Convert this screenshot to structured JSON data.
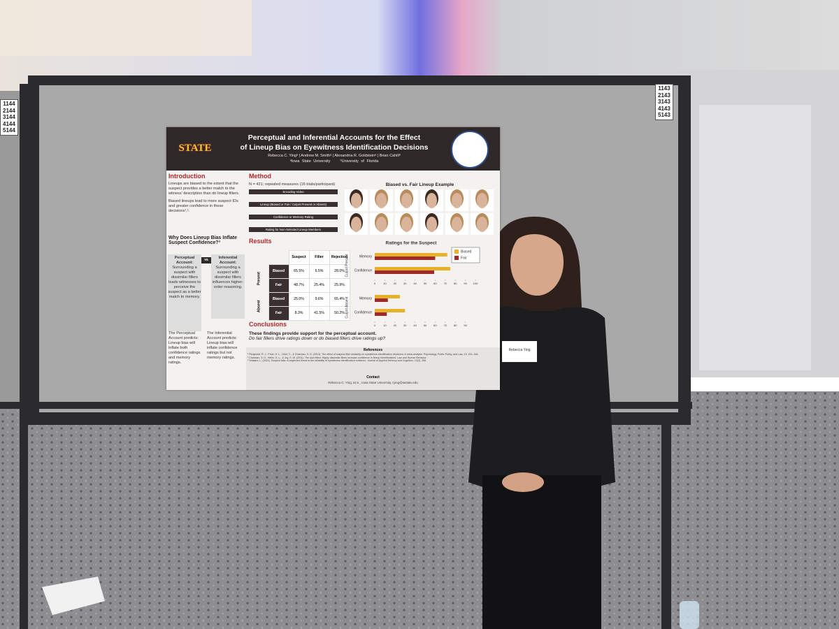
{
  "board_numbers": {
    "left": [
      "1144",
      "2144",
      "3144",
      "4144",
      "5144"
    ],
    "right": [
      "1143",
      "2143",
      "3143",
      "4143",
      "5143"
    ]
  },
  "poster": {
    "logo": "STATE",
    "title": [
      "Perceptual and Inferential Accounts for the Effect",
      "of Lineup Bias on Eyewitness Identification Decisions"
    ],
    "authors": "Rebecca C. Yingᵃ | Andrew M. Smithᵃ | Alexandria R. Goldsteinᵃ | Brian Cahillᵇ",
    "affiliations": [
      "ᵃIowa State University",
      "ᵇUniversity of Florida"
    ],
    "introduction": {
      "heading": "Introduction",
      "paragraphs": [
        "Lineups are biased to the extent that the suspect provides a better match to the witness' description than do lineup fillers.",
        "Biased lineups lead to more suspect IDs and greater confidence in these decisions¹,²."
      ]
    },
    "question": "Why Does Lineup Bias Inflate Suspect Confidence?³",
    "accounts": {
      "vs": "vs",
      "perceptual": {
        "name": "Perceptual Account:",
        "text": "Surrounding a suspect with dissimilar fillers leads witnesses to perceive the suspect as a better match to memory.",
        "prediction": "The Perceptual Account predicts: Lineup bias will inflate both confidence ratings and memory ratings."
      },
      "inferential": {
        "name": "Inferential Account:",
        "text": "Surrounding a suspect with dissimilar fillers influences higher-order reasoning.",
        "prediction": "The Inferential Account predicts: Lineup bias will inflate confidence ratings but not memory ratings."
      }
    },
    "method": {
      "heading": "Method",
      "design": "N = 421; repeated measures (16 trials/participant)",
      "steps": [
        "Encoding Video",
        "Lineup (Biased or Fair / Culprit Present or Absent)",
        "Confidence or Memory Rating",
        "Rating for Non-Selected Lineup Members"
      ]
    },
    "lineup_example": "Biased vs. Fair Lineup Example",
    "results": {
      "heading": "Results",
      "table": {
        "columns": [
          "Suspect",
          "Filler",
          "Rejection"
        ],
        "groups": [
          "Present",
          "Absent"
        ],
        "rows": [
          {
            "label": "Biased",
            "cells": [
              "65.5%",
              "6.5%",
              "28.0%"
            ]
          },
          {
            "label": "Fair",
            "cells": [
              "48.7%",
              "25.4%",
              "25.9%"
            ]
          },
          {
            "label": "Biased",
            "cells": [
              "25.0%",
              "9.6%",
              "65.4%"
            ]
          },
          {
            "label": "Fair",
            "cells": [
              "8.3%",
              "41.5%",
              "50.2%"
            ]
          }
        ]
      }
    },
    "chart": {
      "type": "bar",
      "title": "Ratings for the Suspect",
      "groups": [
        "Culprit Present",
        "Culprit Absent"
      ],
      "categories": [
        "Memory",
        "Confidence",
        "Memory",
        "Confidence"
      ],
      "series": [
        {
          "name": "Biased",
          "color": "#e9b12a",
          "values": [
            72,
            75,
            25,
            30
          ]
        },
        {
          "name": "Fair",
          "color": "#9e2a2b",
          "values": [
            60,
            59,
            13,
            12
          ]
        }
      ],
      "xlim": [
        0,
        100
      ],
      "xticks": [
        0,
        10,
        20,
        30,
        40,
        50,
        60,
        70,
        80,
        90,
        100
      ],
      "xticks_absent": [
        0,
        10,
        20,
        30,
        40,
        50,
        60,
        70,
        80,
        90
      ]
    },
    "conclusions": {
      "heading": "Conclusions",
      "lines": [
        "These findings provide support for the perceptual account.",
        "Do fair fillers drive ratings down or do biased fillers drive ratings up?"
      ]
    },
    "references": {
      "heading": "References",
      "items": [
        "¹ Fitzgerald, R. J., Price, H. L., Oriet, C., & Charman, S. D. (2013). The effect of suspect-filler similarity on eyewitness identification decisions: A meta-analysis. Psychology, Public Policy, and Law, 19, 151–164.",
        "² Charman, S. D., Wells, G. L., & Joy, S. W. (2011). The dud effect: Highly dissimilar fillers increase confidence in lineup identifications. Law and Human Behavior",
        "³ Smalarz, L. (2021). Suspect bias: A neglected threat to the reliability of eyewitness identification evidence. Journal of Applied Memory and Cognition, 10(3), 356"
      ]
    },
    "contact": {
      "heading": "Contact",
      "text": "Rebecca C. Ying, M.S., Iowa State University, rying@iastate.edu"
    }
  },
  "name_badge": "Rebecca Ying"
}
